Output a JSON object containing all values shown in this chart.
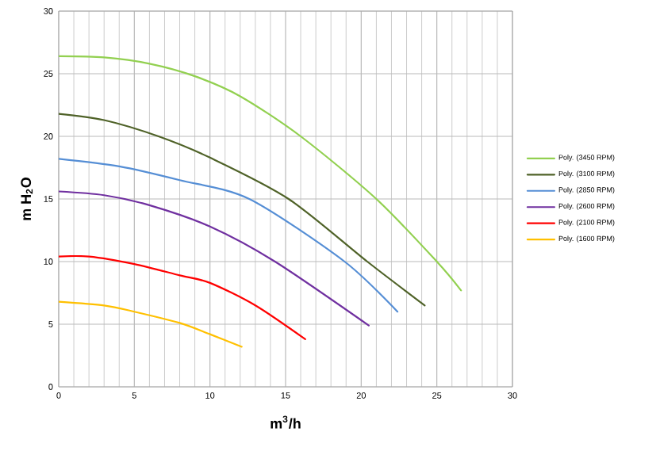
{
  "chart_data": {
    "type": "line",
    "xlabel": "m$^{3}$/h",
    "ylabel": "m H$_{2}$O",
    "xlim": [
      0,
      30
    ],
    "ylim": [
      0,
      30
    ],
    "xticks": [
      0,
      5,
      10,
      15,
      20,
      25,
      30
    ],
    "yticks": [
      0,
      5,
      10,
      15,
      20,
      25,
      30
    ],
    "grid": true,
    "legend": "right",
    "marker": "none",
    "line_style": "solid",
    "series": [
      {
        "name": "Poly. (3450 RPM)",
        "color": "#92d050",
        "x": [
          0,
          3,
          6,
          9,
          12,
          16,
          21,
          25,
          26.6
        ],
        "values": [
          26.4,
          26.3,
          25.8,
          24.8,
          23.2,
          20,
          15,
          10,
          7.7
        ]
      },
      {
        "name": "Poly. (3100 RPM)",
        "color": "#4f6228",
        "x": [
          0,
          3,
          6.6,
          10,
          15.2,
          20.4,
          24.2
        ],
        "values": [
          21.8,
          21.3,
          20,
          18.3,
          15,
          10,
          6.5
        ]
      },
      {
        "name": "Poly. (2850 RPM)",
        "color": "#558ed5",
        "x": [
          0,
          4,
          8,
          12.6,
          18.9,
          22.4
        ],
        "values": [
          18.2,
          17.6,
          16.5,
          15,
          10,
          6.0
        ]
      },
      {
        "name": "Poly. (2600 RPM)",
        "color": "#7030a0",
        "x": [
          0,
          3,
          6,
          10,
          14.3,
          20.5
        ],
        "values": [
          15.6,
          15.3,
          14.5,
          12.8,
          10,
          4.9
        ]
      },
      {
        "name": "Poly. (2100 RPM)",
        "color": "#ff0000",
        "x": [
          0,
          2,
          5,
          8,
          10,
          13,
          16.3
        ],
        "values": [
          10.4,
          10.4,
          9.8,
          8.9,
          8.3,
          6.5,
          3.8
        ]
      },
      {
        "name": "Poly. (1600 RPM)",
        "color": "#ffc000",
        "x": [
          0,
          3,
          5,
          8,
          10,
          12.1
        ],
        "values": [
          6.8,
          6.5,
          6.0,
          5.1,
          4.2,
          3.2
        ]
      }
    ]
  }
}
